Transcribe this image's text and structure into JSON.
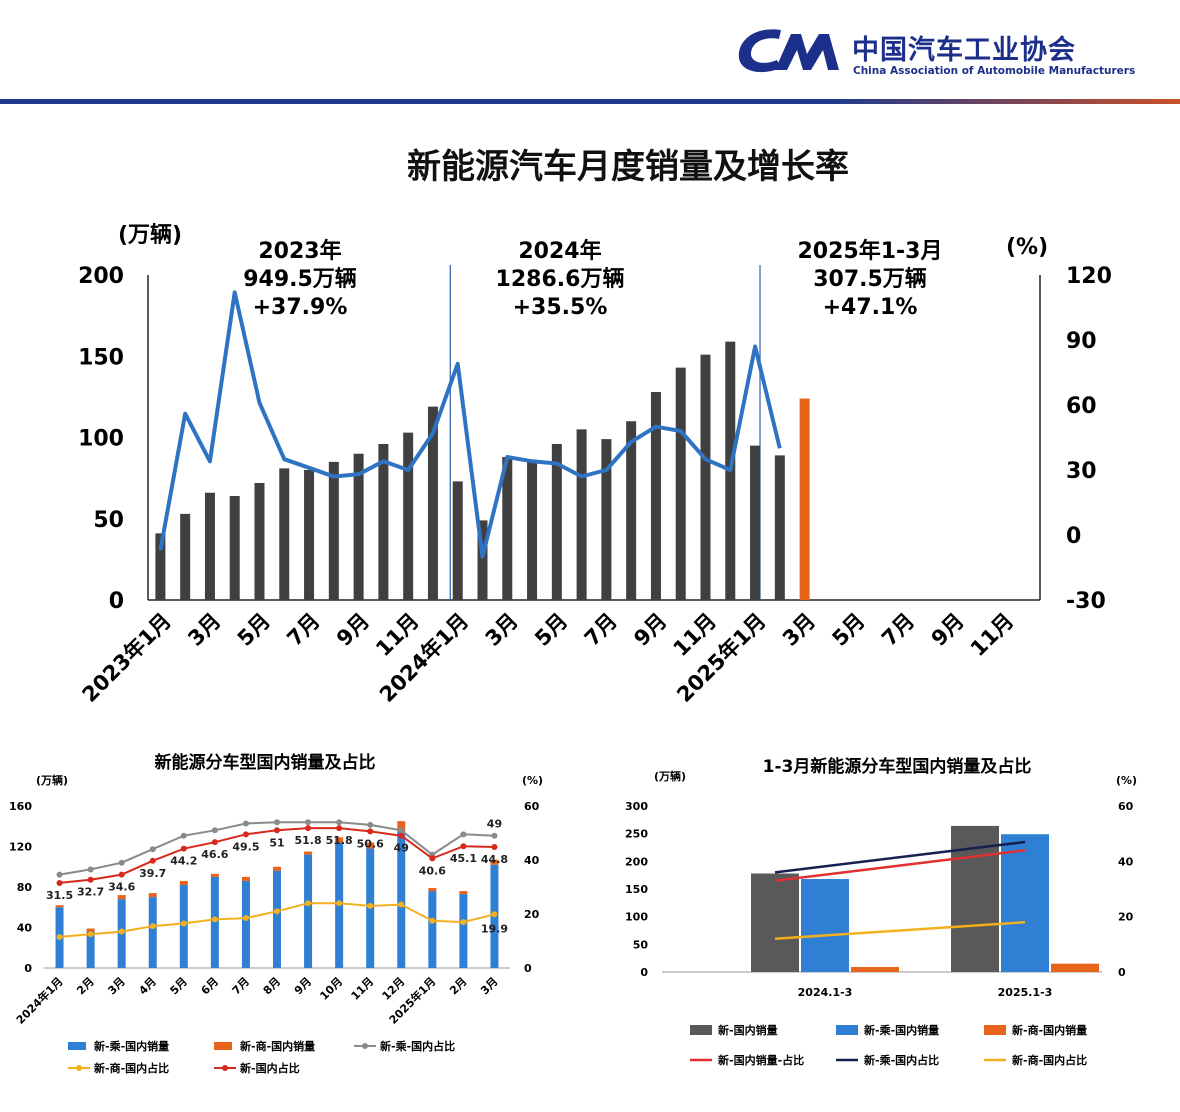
{
  "header": {
    "org_cn": "中国汽车工业协会",
    "org_en": "China Association of Automobile Manufacturers",
    "colors": {
      "brand": "#1c2f8a",
      "accent": "#c8502a"
    }
  },
  "chart_data": [
    {
      "type": "bar",
      "title": "新能源汽车月度销量及增长率",
      "y_unit_left": "(万辆)",
      "y_unit_right": "(%)",
      "ylim": [
        0,
        200
      ],
      "y_ticks": [
        0,
        50,
        100,
        150,
        200
      ],
      "y2lim": [
        -30,
        120
      ],
      "y2_ticks": [
        -30,
        0,
        30,
        60,
        90,
        120
      ],
      "x_labels": [
        "2023年1月",
        "3月",
        "5月",
        "7月",
        "9月",
        "11月",
        "2024年1月",
        "3月",
        "5月",
        "7月",
        "9月",
        "11月",
        "2025年1月",
        "3月",
        "5月",
        "7月",
        "9月",
        "11月"
      ],
      "x_slots": 36,
      "annotations": [
        {
          "line1": "2023年",
          "line2": "949.5万辆",
          "line3": "+37.9%"
        },
        {
          "line1": "2024年",
          "line2": "1286.6万辆",
          "line3": "+35.5%"
        },
        {
          "line1": "2025年1-3月",
          "line2": "307.5万辆",
          "line3": "+47.1%"
        }
      ],
      "series": [
        {
          "kind": "bar",
          "color": "#404040",
          "values": [
            41,
            53,
            66,
            64,
            72,
            81,
            80,
            85,
            90,
            96,
            103,
            119,
            73,
            49,
            88,
            85,
            96,
            105,
            99,
            110,
            128,
            143,
            151,
            159,
            95,
            89
          ]
        },
        {
          "kind": "bar",
          "color": "#e8641c",
          "start_index": 26,
          "values": [
            124
          ]
        },
        {
          "kind": "line",
          "color": "#2f73c3",
          "axis": "right",
          "values": [
            -7,
            56,
            34,
            112,
            61,
            35,
            31,
            27,
            28,
            34,
            30,
            47,
            79,
            -10,
            36,
            34,
            33,
            27,
            30,
            43,
            50,
            48,
            35,
            30,
            87,
            40
          ]
        }
      ]
    },
    {
      "type": "bar",
      "title": "新能源分车型国内销量及占比",
      "y_unit_left": "(万辆)",
      "y_unit_right": "(%)",
      "ylim": [
        0,
        160
      ],
      "y_ticks": [
        0,
        40,
        80,
        120,
        160
      ],
      "y2lim": [
        0,
        60
      ],
      "y2_ticks": [
        0,
        20,
        40,
        60
      ],
      "categories": [
        "2024年1月",
        "2月",
        "3月",
        "4月",
        "5月",
        "6月",
        "7月",
        "8月",
        "9月",
        "10月",
        "11月",
        "12月",
        "2025年1月",
        "2月",
        "3月"
      ],
      "series": [
        {
          "name": "新-乘-国内销量",
          "kind": "bar",
          "color": "#2f7fd4",
          "values": [
            60,
            36,
            68,
            70,
            82,
            90,
            86,
            96,
            112,
            124,
            118,
            135,
            76,
            73,
            102
          ]
        },
        {
          "name": "新-商-国内销量",
          "kind": "bar",
          "color": "#e8641c",
          "values": [
            2,
            3,
            4,
            4,
            4,
            3,
            4,
            4,
            3,
            5,
            6,
            10,
            3,
            3,
            5
          ]
        },
        {
          "name": "新-乘-国内占比",
          "kind": "line",
          "color": "#8a8a8a",
          "values": [
            34.6,
            36.5,
            39,
            44,
            49,
            51,
            53.5,
            54,
            54,
            54,
            53,
            51,
            42,
            49.5,
            49
          ]
        },
        {
          "name": "新-商-国内占比",
          "kind": "line",
          "color": "#f2b01e",
          "values": [
            11.5,
            12.5,
            13.5,
            15.5,
            16.5,
            18,
            18.5,
            21,
            24,
            24,
            23,
            23.5,
            17.5,
            17,
            19.9
          ]
        },
        {
          "name": "新-国内占比",
          "kind": "line",
          "color": "#d9281c",
          "values": [
            31.5,
            32.7,
            34.6,
            39.7,
            44.2,
            46.6,
            49.5,
            51,
            51.8,
            51.8,
            50.6,
            49,
            40.6,
            45.1,
            44.8
          ]
        }
      ],
      "data_labels": [
        {
          "index": 0,
          "text": "31.5"
        },
        {
          "index": 1,
          "text": "32.7"
        },
        {
          "index": 2,
          "text": "34.6"
        },
        {
          "index": 3,
          "text": "39.7"
        },
        {
          "index": 4,
          "text": "44.2"
        },
        {
          "index": 5,
          "text": "46.6"
        },
        {
          "index": 6,
          "text": "49.5"
        },
        {
          "index": 7,
          "text": "51"
        },
        {
          "index": 8,
          "text": "51.8"
        },
        {
          "index": 9,
          "text": "51.8"
        },
        {
          "index": 10,
          "text": "50.6"
        },
        {
          "index": 11,
          "text": "49"
        },
        {
          "index": 12,
          "text": "40.6"
        },
        {
          "index": 13,
          "text": "45.1"
        },
        {
          "index": 14,
          "text": "44.8"
        },
        {
          "index": 14,
          "text": "49"
        },
        {
          "index": 14,
          "text": "19.9"
        }
      ],
      "legend": "bottom"
    },
    {
      "type": "bar",
      "title": "1-3月新能源分车型国内销量及占比",
      "y_unit_left": "(万辆)",
      "y_unit_right": "(%)",
      "ylim": [
        0,
        300
      ],
      "y_ticks": [
        0,
        50,
        100,
        150,
        200,
        250,
        300
      ],
      "y2lim": [
        0,
        60
      ],
      "y2_ticks": [
        0,
        20,
        40,
        60
      ],
      "categories": [
        "2024.1-3",
        "2025.1-3"
      ],
      "series": [
        {
          "name": "新-国内销量",
          "kind": "bar",
          "color": "#595959",
          "values": [
            178,
            264
          ]
        },
        {
          "name": "新-乘-国内销量",
          "kind": "bar",
          "color": "#2f7fd4",
          "values": [
            168,
            249
          ]
        },
        {
          "name": "新-商-国内销量",
          "kind": "bar",
          "color": "#e8641c",
          "values": [
            9,
            15
          ]
        },
        {
          "name": "新-国内销量-占比",
          "kind": "line",
          "color": "#e03030",
          "values": [
            33,
            44
          ]
        },
        {
          "name": "新-乘-国内占比",
          "kind": "line",
          "color": "#17214f",
          "values": [
            36,
            47
          ]
        },
        {
          "name": "新-商-国内占比",
          "kind": "line",
          "color": "#f2b01e",
          "values": [
            12,
            18
          ]
        }
      ],
      "legend": "bottom"
    }
  ]
}
